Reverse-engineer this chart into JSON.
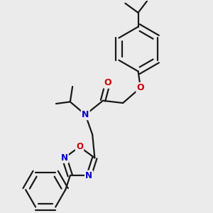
{
  "bg_color": "#ebebeb",
  "bond_color": "#1a1a1a",
  "N_color": "#0000cc",
  "O_color": "#cc0000",
  "lw": 1.6,
  "dbo": 0.018,
  "xlim": [
    0.05,
    0.95
  ],
  "ylim": [
    0.05,
    0.95
  ]
}
